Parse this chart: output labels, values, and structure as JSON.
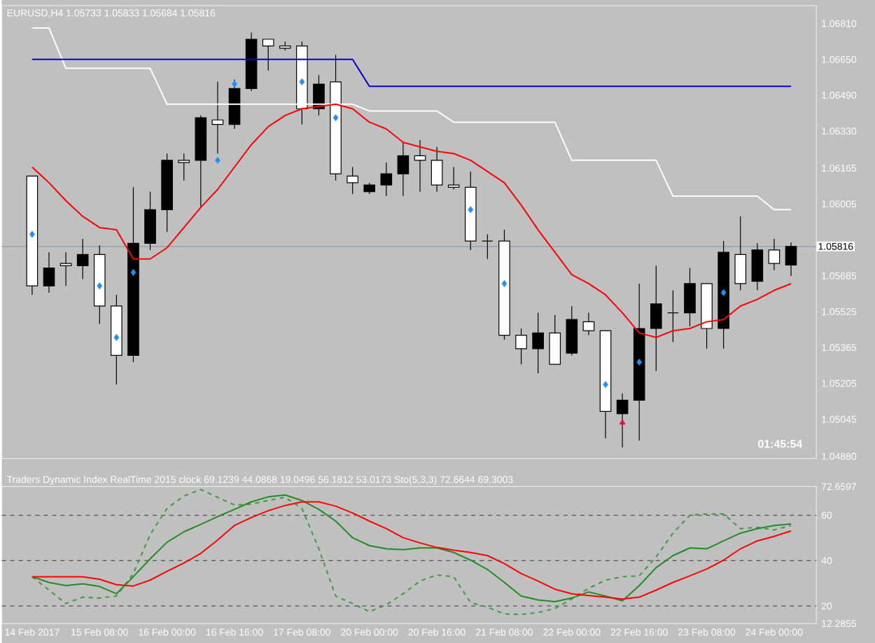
{
  "chart_data": [
    {
      "type": "candlestick",
      "title": "EURUSD,H4  1.05733 1.05833 1.05684 1.05816",
      "categories": [
        null,
        null,
        null,
        null,
        null,
        null,
        null,
        null,
        null,
        null,
        null,
        null,
        null,
        null,
        null,
        null,
        null,
        null,
        null,
        null,
        null,
        null,
        null,
        null,
        null,
        null,
        null,
        null,
        null,
        null,
        null,
        null,
        null,
        null,
        null,
        null,
        null,
        null,
        null,
        null,
        null,
        null,
        null,
        null,
        null,
        null
      ],
      "tick_labels": "y",
      "ohlc": [
        [
          1.0613,
          1.0613,
          1.056,
          1.0564
        ],
        [
          1.0564,
          1.0579,
          1.0561,
          1.0572
        ],
        [
          1.0574,
          1.0579,
          1.0564,
          1.0573
        ],
        [
          1.0573,
          1.0585,
          1.0567,
          1.0578
        ],
        [
          1.0578,
          1.0582,
          1.0547,
          1.0555
        ],
        [
          1.0555,
          1.056,
          1.052,
          1.0533
        ],
        [
          1.0533,
          1.0608,
          1.053,
          1.0583
        ],
        [
          1.0583,
          1.0606,
          1.058,
          1.0598
        ],
        [
          1.0598,
          1.0623,
          1.0588,
          1.062
        ],
        [
          1.062,
          1.0623,
          1.0611,
          1.0619
        ],
        [
          1.062,
          1.064,
          1.0599,
          1.0639
        ],
        [
          1.0638,
          1.0655,
          1.0623,
          1.0636
        ],
        [
          1.0636,
          1.0656,
          1.0634,
          1.0652
        ],
        [
          1.0652,
          1.0677,
          1.0651,
          1.0674
        ],
        [
          1.0674,
          1.0674,
          1.066,
          1.0671
        ],
        [
          1.0671,
          1.0673,
          1.0669,
          1.067
        ],
        [
          1.0671,
          1.0673,
          1.0636,
          1.0643
        ],
        [
          1.0643,
          1.0658,
          1.064,
          1.0654
        ],
        [
          1.0655,
          1.0667,
          1.0611,
          1.0614
        ],
        [
          1.0613,
          1.0617,
          1.0605,
          1.061
        ],
        [
          1.0606,
          1.061,
          1.0605,
          1.0609
        ],
        [
          1.0609,
          1.0619,
          1.0604,
          1.0614
        ],
        [
          1.0614,
          1.0628,
          1.0604,
          1.0622
        ],
        [
          1.0622,
          1.0629,
          1.0606,
          1.062
        ],
        [
          1.062,
          1.0626,
          1.0606,
          1.0609
        ],
        [
          1.0609,
          1.0617,
          1.0607,
          1.0608
        ],
        [
          1.0608,
          1.0615,
          1.058,
          1.0584
        ],
        [
          1.0584,
          1.0587,
          1.0576,
          1.0584
        ],
        [
          1.0584,
          1.0589,
          1.054,
          1.0542
        ],
        [
          1.0542,
          1.0545,
          1.0529,
          1.0536
        ],
        [
          1.0536,
          1.0552,
          1.0525,
          1.0543
        ],
        [
          1.0543,
          1.0551,
          1.0529,
          1.0529
        ],
        [
          1.0534,
          1.0555,
          1.0533,
          1.0549
        ],
        [
          1.0548,
          1.0552,
          1.0542,
          1.0544
        ],
        [
          1.0544,
          1.0544,
          1.0496,
          1.0508
        ],
        [
          1.0507,
          1.0516,
          1.0492,
          1.0513
        ],
        [
          1.0513,
          1.0565,
          1.0495,
          1.0545
        ],
        [
          1.0545,
          1.0573,
          1.0526,
          1.0556
        ],
        [
          1.0552,
          1.0562,
          1.0539,
          1.0552
        ],
        [
          1.0552,
          1.0572,
          1.0546,
          1.0565
        ],
        [
          1.0565,
          1.0565,
          1.0536,
          1.0545
        ],
        [
          1.0545,
          1.0584,
          1.0536,
          1.0579
        ],
        [
          1.0578,
          1.0595,
          1.0562,
          1.0565
        ],
        [
          1.0566,
          1.0583,
          1.0562,
          1.058
        ],
        [
          1.058,
          1.0585,
          1.0571,
          1.0574
        ],
        [
          1.05733,
          1.05833,
          1.05684,
          1.05816
        ]
      ],
      "series": [
        {
          "type": "line",
          "color": "#ffffff",
          "values": [
            1.0679,
            1.0679,
            1.0661,
            1.0661,
            1.0661,
            1.0661,
            1.0661,
            1.0661,
            1.0645,
            1.0645,
            1.0645,
            1.0645,
            1.0645,
            1.0645,
            1.0645,
            1.0645,
            1.0645,
            1.0645,
            1.0645,
            1.0645,
            1.0642,
            1.0642,
            1.0642,
            1.0642,
            1.0642,
            1.0637,
            1.0637,
            1.0637,
            1.0637,
            1.0637,
            1.0637,
            1.0637,
            1.062,
            1.062,
            1.062,
            1.062,
            1.062,
            1.062,
            1.0604,
            1.0604,
            1.0604,
            1.0604,
            1.0604,
            1.0604,
            1.0598,
            1.0598
          ]
        },
        {
          "type": "line",
          "color": "#0000cd",
          "values": [
            1.0665,
            1.0665,
            1.0665,
            1.0665,
            1.0665,
            1.0665,
            1.0665,
            1.0665,
            1.0665,
            1.0665,
            1.0665,
            1.0665,
            1.0665,
            1.0665,
            1.0665,
            1.0665,
            1.0665,
            1.0665,
            1.0665,
            1.0665,
            1.0653,
            1.0653,
            1.0653,
            1.0653,
            1.0653,
            1.0653,
            1.0653,
            1.0653,
            1.0653,
            1.0653,
            1.0653,
            1.0653,
            1.0653,
            1.0653,
            1.0653,
            1.0653,
            1.0653,
            1.0653,
            1.0653,
            1.0653,
            1.0653,
            1.0653,
            1.0653,
            1.0653,
            1.0653,
            1.0653
          ]
        },
        {
          "type": "line",
          "color": "#ff0000",
          "values": [
            1.0617,
            1.061,
            1.0602,
            1.0595,
            1.059,
            1.0589,
            1.0576,
            1.0576,
            1.0581,
            1.059,
            1.0599,
            1.0607,
            1.0617,
            1.0627,
            1.0635,
            1.064,
            1.0643,
            1.0644,
            1.0645,
            1.0643,
            1.0637,
            1.0634,
            1.0628,
            1.0626,
            1.0624,
            1.0623,
            1.062,
            1.0615,
            1.061,
            1.06,
            1.0589,
            1.0579,
            1.0569,
            1.0565,
            1.056,
            1.0552,
            1.0543,
            1.0541,
            1.0544,
            1.0545,
            1.0548,
            1.0549,
            1.0555,
            1.0558,
            1.0562,
            1.0565
          ]
        },
        {
          "type": "scatter",
          "marker": "diamond",
          "color": "#1e90ff",
          "values": [
            1.0587,
            null,
            null,
            null,
            1.0564,
            1.0541,
            1.057,
            null,
            null,
            null,
            null,
            1.062,
            1.0654,
            null,
            null,
            null,
            1.0655,
            null,
            1.0639,
            null,
            null,
            null,
            null,
            null,
            null,
            null,
            1.0598,
            null,
            1.0565,
            null,
            null,
            null,
            null,
            null,
            1.052,
            null,
            1.053,
            null,
            null,
            null,
            null,
            1.0561,
            null,
            null,
            null,
            null
          ]
        },
        {
          "type": "scatter",
          "marker": "triangle",
          "color": "#dc143c",
          "values": [
            null,
            null,
            null,
            null,
            null,
            null,
            null,
            null,
            null,
            null,
            null,
            null,
            null,
            null,
            null,
            null,
            null,
            null,
            null,
            null,
            null,
            null,
            null,
            null,
            null,
            null,
            null,
            null,
            null,
            null,
            null,
            null,
            null,
            null,
            null,
            1.0503,
            null,
            null,
            null,
            null,
            null,
            null,
            null,
            null,
            null,
            null
          ]
        }
      ],
      "ylim": [
        1.0487,
        1.0689
      ],
      "yticks": [
        {
          "value": 1.0681,
          "label": "1.06810"
        },
        {
          "value": 1.0665,
          "label": "1.06650"
        },
        {
          "value": 1.0649,
          "label": "1.06490"
        },
        {
          "value": 1.0633,
          "label": "1.06330"
        },
        1.06165,
        1.06005,
        1.05685,
        1.05525,
        1.05365,
        1.05205,
        1.05045,
        {
          "value": 1.0488,
          "label": "1.04880"
        }
      ],
      "ref_lines": [
        {
          "axis": "y",
          "value": 1.05816,
          "label": "1.05816",
          "color": "#8c9cab"
        }
      ],
      "annotations": [
        "01:45:54"
      ]
    },
    {
      "type": "line",
      "title": "Traders Dynamic Index RealTime 2015 clock 69.1239 44.0868 19.0496 56.1812 53.0173  Sto(5,3,3) 72.6644 69.3003",
      "categories": [
        "14 Feb 2017",
        null,
        null,
        null,
        "15 Feb 08:00",
        null,
        null,
        null,
        "16 Feb 00:00",
        null,
        null,
        null,
        "16 Feb 16:00",
        null,
        null,
        null,
        "17 Feb 08:00",
        null,
        null,
        null,
        "20 Feb 00:00",
        null,
        null,
        null,
        "20 Feb 16:00",
        null,
        null,
        null,
        "21 Feb 08:00",
        null,
        null,
        null,
        "22 Feb 00:00",
        null,
        null,
        null,
        "22 Feb 16:00",
        null,
        null,
        null,
        "23 Feb 08:00",
        null,
        null,
        null,
        "24 Feb 00:00",
        null
      ],
      "series": [
        {
          "color": "#3c9a3c",
          "line_style": "dashed",
          "values": [
            32.9,
            27.0,
            21.1,
            23.9,
            23.5,
            24.4,
            34.3,
            51.5,
            63.0,
            68.5,
            71.3,
            67.9,
            64.5,
            64.9,
            66.5,
            67.9,
            63.0,
            45.2,
            24.4,
            21.1,
            17.5,
            20.5,
            25.4,
            31.0,
            33.7,
            32.9,
            21.5,
            19.5,
            16.5,
            16.3,
            17.1,
            18.9,
            23.1,
            27.8,
            31.4,
            32.9,
            33.3,
            41.6,
            52.1,
            60.0,
            60.6,
            60.6,
            54.1,
            54.7,
            53.5,
            55.5
          ]
        },
        {
          "color": "#228b22",
          "values": [
            32.9,
            30.4,
            29.0,
            29.8,
            28.6,
            25.4,
            32.9,
            40.8,
            48.1,
            52.7,
            56.0,
            59.4,
            62.6,
            65.9,
            68.1,
            68.9,
            66.5,
            62.6,
            57.4,
            50.1,
            46.6,
            45.2,
            44.8,
            45.6,
            45.6,
            43.6,
            40.2,
            36.1,
            30.4,
            24.4,
            22.7,
            21.9,
            23.5,
            26.2,
            24.4,
            22.3,
            29.0,
            36.9,
            42.2,
            45.6,
            45.2,
            48.7,
            52.1,
            54.1,
            55.5,
            56.2
          ]
        },
        {
          "color": "#ff0000",
          "values": [
            32.9,
            32.9,
            32.9,
            32.9,
            31.8,
            29.4,
            28.8,
            31.4,
            35.3,
            38.9,
            43.2,
            49.1,
            55.5,
            59.0,
            62.0,
            64.3,
            65.9,
            65.9,
            64.0,
            61.0,
            57.4,
            54.1,
            50.1,
            47.8,
            45.8,
            44.6,
            43.6,
            42.2,
            38.7,
            34.3,
            31.0,
            27.4,
            25.4,
            24.6,
            23.9,
            23.1,
            23.9,
            27.0,
            30.4,
            33.3,
            36.3,
            40.2,
            45.2,
            48.7,
            50.7,
            53.1
          ]
        }
      ],
      "ylim": [
        12.2855,
        72.6597
      ],
      "yticks": [
        12.2855,
        20,
        40,
        60,
        72.6597
      ],
      "ref_lines": [
        {
          "axis": "y",
          "value": 20,
          "color": "#505050",
          "line_style": "dashed"
        },
        {
          "axis": "y",
          "value": 40,
          "color": "#505050",
          "line_style": "dashed"
        },
        {
          "axis": "y",
          "value": 60,
          "color": "#505050",
          "line_style": "dashed"
        }
      ]
    }
  ]
}
